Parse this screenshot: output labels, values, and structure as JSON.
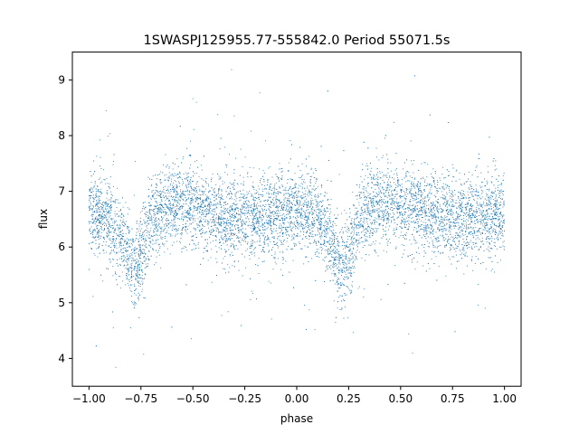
{
  "chart_data": {
    "type": "scatter",
    "title": "1SWASPJ125955.77-555842.0 Period 55071.5s",
    "xlabel": "phase",
    "ylabel": "flux",
    "xlim": [
      -1.08,
      1.08
    ],
    "ylim": [
      3.5,
      9.5
    ],
    "xticks": [
      -1.0,
      -0.75,
      -0.5,
      -0.25,
      0.0,
      0.25,
      0.5,
      0.75,
      1.0
    ],
    "xtick_labels": [
      "−1.00",
      "−0.75",
      "−0.50",
      "−0.25",
      "0.00",
      "0.25",
      "0.50",
      "0.75",
      "1.00"
    ],
    "yticks": [
      4,
      5,
      6,
      7,
      8,
      9
    ],
    "ytick_labels": [
      "4",
      "5",
      "6",
      "7",
      "8",
      "9"
    ],
    "grid": false,
    "legend": "none",
    "point_color": "#1f77b4",
    "series": [
      {
        "x": [
          -1.0,
          -0.95,
          -0.9,
          -0.85,
          -0.8,
          -0.78,
          -0.75,
          -0.7,
          -0.65,
          -0.6,
          -0.5,
          -0.4,
          -0.3,
          -0.2,
          -0.1,
          -0.05,
          0.0,
          0.05,
          0.1,
          0.15,
          0.2,
          0.22,
          0.25,
          0.3,
          0.35,
          0.4,
          0.5,
          0.6,
          0.7,
          0.8,
          0.9,
          0.95,
          1.0
        ],
        "y": [
          6.6,
          6.6,
          6.5,
          6.2,
          5.7,
          5.6,
          5.9,
          6.5,
          6.7,
          6.8,
          6.7,
          6.6,
          6.5,
          6.5,
          6.6,
          6.6,
          6.6,
          6.6,
          6.5,
          6.2,
          5.7,
          5.6,
          5.9,
          6.5,
          6.7,
          6.8,
          6.7,
          6.6,
          6.5,
          6.5,
          6.6,
          6.6,
          6.6
        ]
      }
    ]
  }
}
